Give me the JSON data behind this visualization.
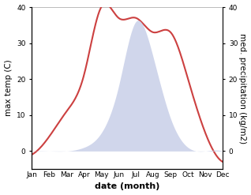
{
  "months": [
    "Jan",
    "Feb",
    "Mar",
    "Apr",
    "May",
    "Jun",
    "Jul",
    "Aug",
    "Sep",
    "Oct",
    "Nov",
    "Dec"
  ],
  "month_indices": [
    1,
    2,
    3,
    4,
    5,
    6,
    7,
    8,
    9,
    10,
    11,
    12
  ],
  "temperature": [
    -1,
    4,
    11,
    21,
    40,
    37,
    37,
    33,
    33,
    20,
    5,
    -3
  ],
  "precipitation": [
    0,
    0,
    0,
    1,
    5,
    18,
    36,
    26,
    9,
    1,
    0,
    0
  ],
  "temp_color": "#cc4040",
  "precip_fill_color": "#c8cfe8",
  "precip_fill_alpha": 0.85,
  "ylim_temp": [
    -5,
    40
  ],
  "ylim_precip": [
    -5,
    40
  ],
  "ylabel_left": "max temp (C)",
  "ylabel_right": "med. precipitation (kg/m2)",
  "xlabel": "date (month)",
  "yticks_left": [
    0,
    10,
    20,
    30,
    40
  ],
  "yticks_right": [
    0,
    10,
    20,
    30,
    40
  ],
  "background_color": "#ffffff",
  "label_fontsize": 7.5,
  "tick_fontsize": 6.5,
  "xlabel_fontsize": 8,
  "top_line_color": "#bbbbbb"
}
